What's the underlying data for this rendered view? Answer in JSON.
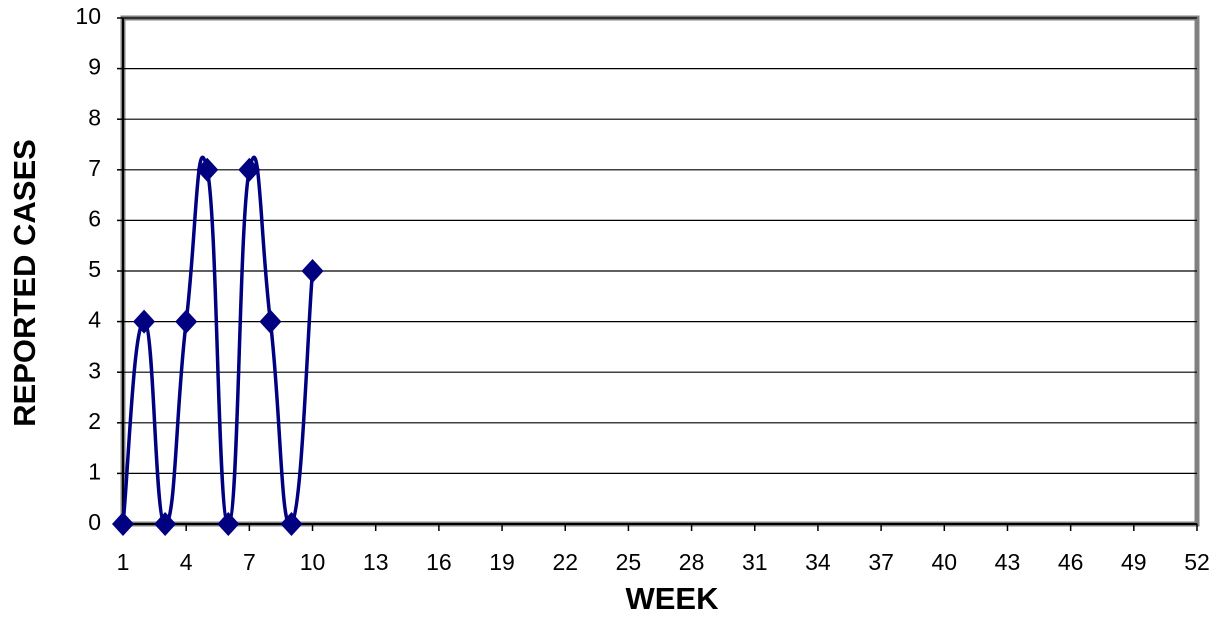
{
  "chart_data": {
    "type": "line",
    "xlabel": "WEEK",
    "ylabel": "REPORTED CASES",
    "x": [
      1,
      2,
      3,
      4,
      5,
      6,
      7,
      8,
      9,
      10
    ],
    "series": [
      {
        "color": "#000080",
        "values": [
          0,
          4,
          0,
          4,
          7,
          0,
          7,
          4,
          0,
          5
        ]
      }
    ],
    "xlim": [
      1,
      52
    ],
    "xticks": [
      1,
      4,
      7,
      10,
      13,
      16,
      19,
      22,
      25,
      28,
      31,
      34,
      37,
      40,
      43,
      46,
      49,
      52
    ],
    "ylim": [
      0,
      10
    ],
    "yticks": [
      0,
      1,
      2,
      3,
      4,
      5,
      6,
      7,
      8,
      9,
      10
    ],
    "grid": true,
    "smooth": true
  }
}
